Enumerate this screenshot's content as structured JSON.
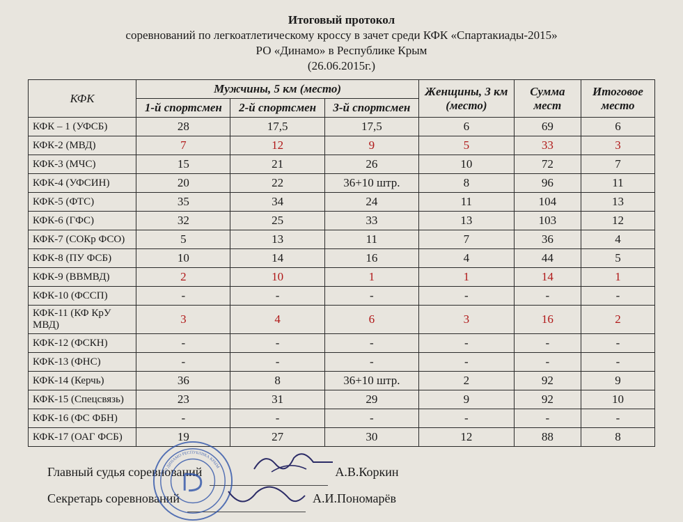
{
  "header": {
    "title": "Итоговый протокол",
    "line1": "соревнований по легкоатлетическому кроссу в зачет среди КФК «Спартакиады-2015»",
    "line2": "РО «Динамо» в Республике Крым",
    "date": "(26.06.2015г.)"
  },
  "table": {
    "col_org": "КФК",
    "col_men": "Мужчины, 5 км (место)",
    "col_m1": "1-й спортсмен",
    "col_m2": "2-й спортсмен",
    "col_m3": "3-й спортсмен",
    "col_women": "Женщины, 3 км (место)",
    "col_sum": "Сумма мест",
    "col_total": "Итоговое место",
    "rows": [
      {
        "org": "КФК – 1 (УФСБ)",
        "m1": "28",
        "m2": "17,5",
        "m3": "17,5",
        "w": "6",
        "sum": "69",
        "tot": "6",
        "red": false
      },
      {
        "org": "КФК-2 (МВД)",
        "m1": "7",
        "m2": "12",
        "m3": "9",
        "w": "5",
        "sum": "33",
        "tot": "3",
        "red": true
      },
      {
        "org": "КФК-3 (МЧС)",
        "m1": "15",
        "m2": "21",
        "m3": "26",
        "w": "10",
        "sum": "72",
        "tot": "7",
        "red": false
      },
      {
        "org": "КФК-4 (УФСИН)",
        "m1": "20",
        "m2": "22",
        "m3": "36+10 штр.",
        "w": "8",
        "sum": "96",
        "tot": "11",
        "red": false
      },
      {
        "org": "КФК-5 (ФТС)",
        "m1": "35",
        "m2": "34",
        "m3": "24",
        "w": "11",
        "sum": "104",
        "tot": "13",
        "red": false
      },
      {
        "org": "КФК-6 (ГФС)",
        "m1": "32",
        "m2": "25",
        "m3": "33",
        "w": "13",
        "sum": "103",
        "tot": "12",
        "red": false
      },
      {
        "org": "КФК-7 (СОКр ФСО)",
        "m1": "5",
        "m2": "13",
        "m3": "11",
        "w": "7",
        "sum": "36",
        "tot": "4",
        "red": false
      },
      {
        "org": "КФК-8 (ПУ ФСБ)",
        "m1": "10",
        "m2": "14",
        "m3": "16",
        "w": "4",
        "sum": "44",
        "tot": "5",
        "red": false
      },
      {
        "org": "КФК-9 (ВВМВД)",
        "m1": "2",
        "m2": "10",
        "m3": "1",
        "w": "1",
        "sum": "14",
        "tot": "1",
        "red": true
      },
      {
        "org": "КФК-10 (ФССП)",
        "m1": "-",
        "m2": "-",
        "m3": "-",
        "w": "-",
        "sum": "-",
        "tot": "-",
        "red": false
      },
      {
        "org": "КФК-11 (КФ КрУ МВД)",
        "m1": "3",
        "m2": "4",
        "m3": "6",
        "w": "3",
        "sum": "16",
        "tot": "2",
        "red": true
      },
      {
        "org": "КФК-12 (ФСКН)",
        "m1": "-",
        "m2": "-",
        "m3": "-",
        "w": "-",
        "sum": "-",
        "tot": "-",
        "red": false
      },
      {
        "org": "КФК-13 (ФНС)",
        "m1": "-",
        "m2": "-",
        "m3": "-",
        "w": "-",
        "sum": "-",
        "tot": "-",
        "red": false
      },
      {
        "org": "КФК-14 (Керчь)",
        "m1": "36",
        "m2": "8",
        "m3": "36+10 штр.",
        "w": "2",
        "sum": "92",
        "tot": "9",
        "red": false
      },
      {
        "org": "КФК-15 (Спецсвязь)",
        "m1": "23",
        "m2": "31",
        "m3": "29",
        "w": "9",
        "sum": "92",
        "tot": "10",
        "red": false
      },
      {
        "org": "КФК-16 (ФС ФБН)",
        "m1": "-",
        "m2": "-",
        "m3": "-",
        "w": "-",
        "sum": "-",
        "tot": "-",
        "red": false
      },
      {
        "org": "КФК-17 (ОАГ ФСБ)",
        "m1": "19",
        "m2": "27",
        "m3": "30",
        "w": "12",
        "sum": "88",
        "tot": "8",
        "red": false
      }
    ]
  },
  "signatures": {
    "judge_label": "Главный судья соревнований",
    "judge_name": "А.В.Коркин",
    "secretary_label": "Секретарь соревнований",
    "secretary_name": "А.И.Пономарёв"
  },
  "style": {
    "bg": "#e8e5de",
    "text": "#1a1a1a",
    "red": "#b01818",
    "border": "#2a2a2a",
    "stamp_color": "#2a50a8",
    "font_table": 17,
    "font_org": 15,
    "font_header": 17,
    "font_sig": 18
  }
}
